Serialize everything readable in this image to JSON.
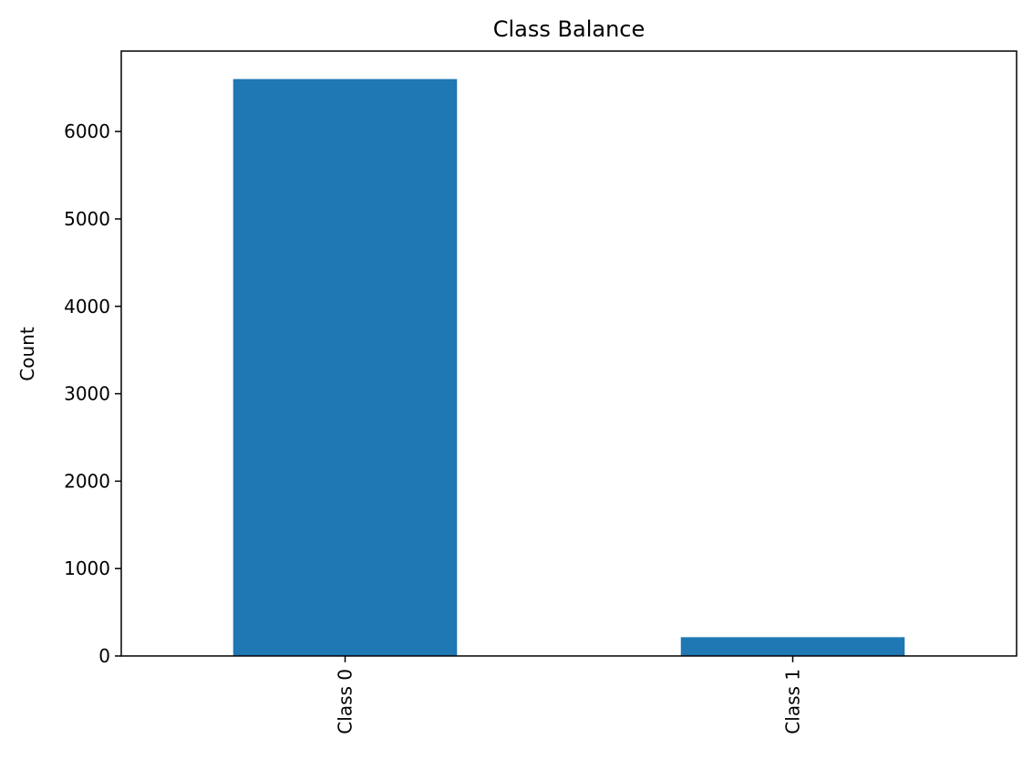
{
  "chart_data": {
    "type": "bar",
    "title": "Class Balance",
    "xlabel": "",
    "ylabel": "Count",
    "categories": [
      "Class 0",
      "Class 1"
    ],
    "values": [
      6600,
      215
    ],
    "ylim": [
      0,
      6920
    ],
    "yticks": [
      0,
      1000,
      2000,
      3000,
      4000,
      5000,
      6000
    ],
    "ytick_labels": [
      "0",
      "1000",
      "2000",
      "3000",
      "4000",
      "5000",
      "6000"
    ],
    "grid": false,
    "legend": "none",
    "bar_color": "#1f77b4",
    "xtick_rotation": "vertical"
  }
}
